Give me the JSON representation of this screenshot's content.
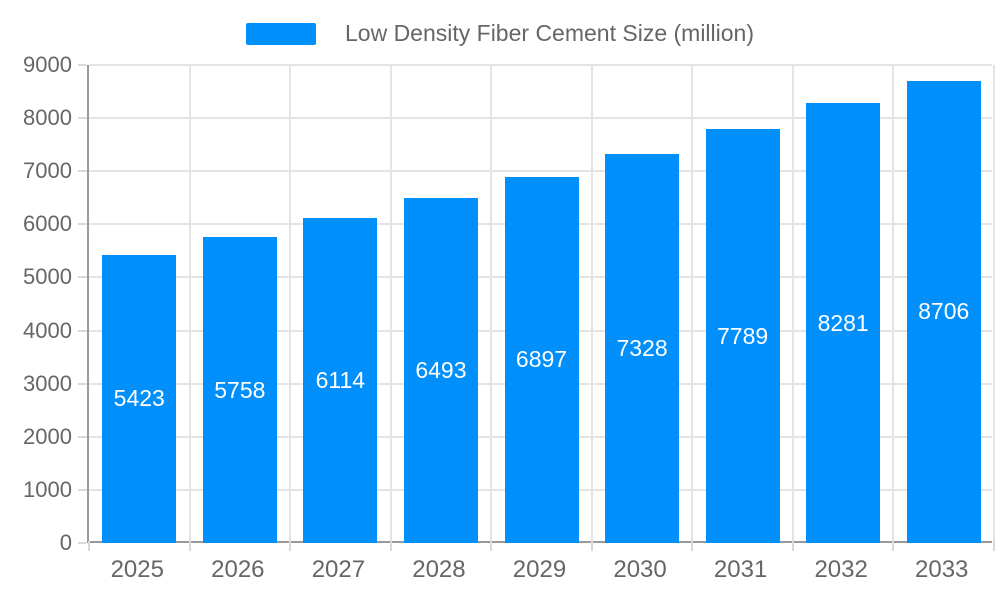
{
  "chart_data": {
    "type": "bar",
    "title": "Low Density Fiber Cement Size (million)",
    "categories": [
      "2025",
      "2026",
      "2027",
      "2028",
      "2029",
      "2030",
      "2031",
      "2032",
      "2033"
    ],
    "values": [
      5423,
      5758,
      6114,
      6493,
      6897,
      7328,
      7789,
      8281,
      8706
    ],
    "data_labels": [
      "5423",
      "5758",
      "6114",
      "6493",
      "6897",
      "7328",
      "7789",
      "8281",
      "8706"
    ],
    "xlabel": "",
    "ylabel": "",
    "ylim": [
      0,
      9000
    ],
    "ytick_step": 1000,
    "ytick_labels": [
      "0",
      "1000",
      "2000",
      "3000",
      "4000",
      "5000",
      "6000",
      "7000",
      "8000",
      "9000"
    ],
    "grid": true,
    "legend_position": "top",
    "legend_label": "Low Density Fiber Cement Size (million)",
    "colors": {
      "bar": "#008FFB",
      "bar_label_text": "#ffffff",
      "axis_text": "#666666",
      "grid_line": "#e4e4e4",
      "axis_line": "#9a9a9a",
      "tick": "#d9d9d9"
    }
  }
}
